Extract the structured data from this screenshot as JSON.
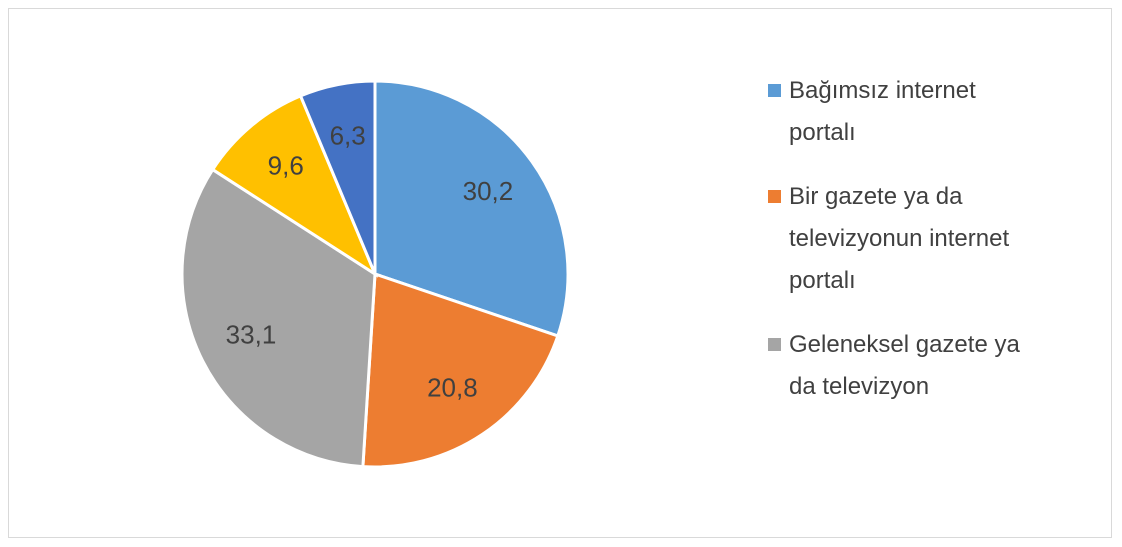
{
  "chart_data": {
    "type": "pie",
    "categories": [
      "Bağımsız internet portalı",
      "Bir gazete ya da televizyonun internet portalı",
      "Geleneksel gazete ya da televizyon",
      null,
      null
    ],
    "values": [
      30.2,
      20.8,
      33.1,
      9.6,
      6.3
    ],
    "value_labels": [
      "30,2",
      "20,8",
      "33,1",
      "9,6",
      "6,3"
    ],
    "colors": [
      "#5b9bd5",
      "#ed7d31",
      "#a5a5a5",
      "#ffc000",
      "#4472c4"
    ],
    "legend": "right"
  }
}
